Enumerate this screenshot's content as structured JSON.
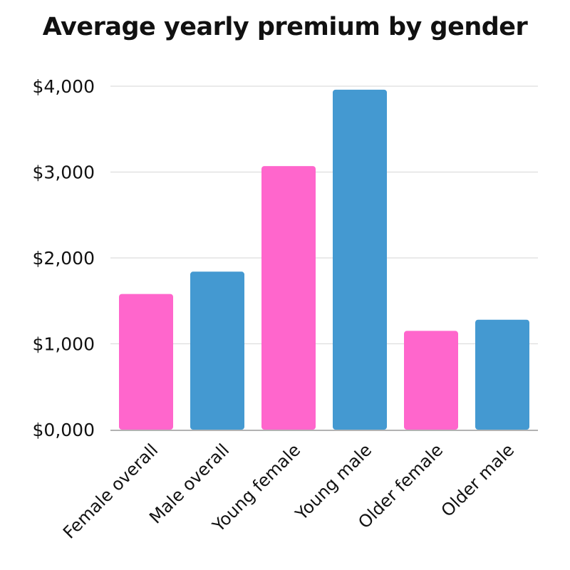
{
  "chart_data": {
    "type": "bar",
    "title": "Average yearly premium by gender",
    "xlabel": "",
    "ylabel": "",
    "categories": [
      "Female overall",
      "Male overall",
      "Young female",
      "Young male",
      "Older female",
      "Older male"
    ],
    "values": [
      1580,
      1840,
      3070,
      3960,
      1150,
      1280
    ],
    "bar_colors": [
      "#ff66cc",
      "#4499d1",
      "#ff66cc",
      "#4499d1",
      "#ff66cc",
      "#4499d1"
    ],
    "ylim": [
      0,
      4000
    ],
    "yticks": [
      0,
      1000,
      2000,
      3000,
      4000
    ],
    "ytick_labels": [
      "$0,000",
      "$1,000",
      "$2,000",
      "$3,000",
      "$4,000"
    ],
    "grid": true,
    "legend": "none"
  }
}
